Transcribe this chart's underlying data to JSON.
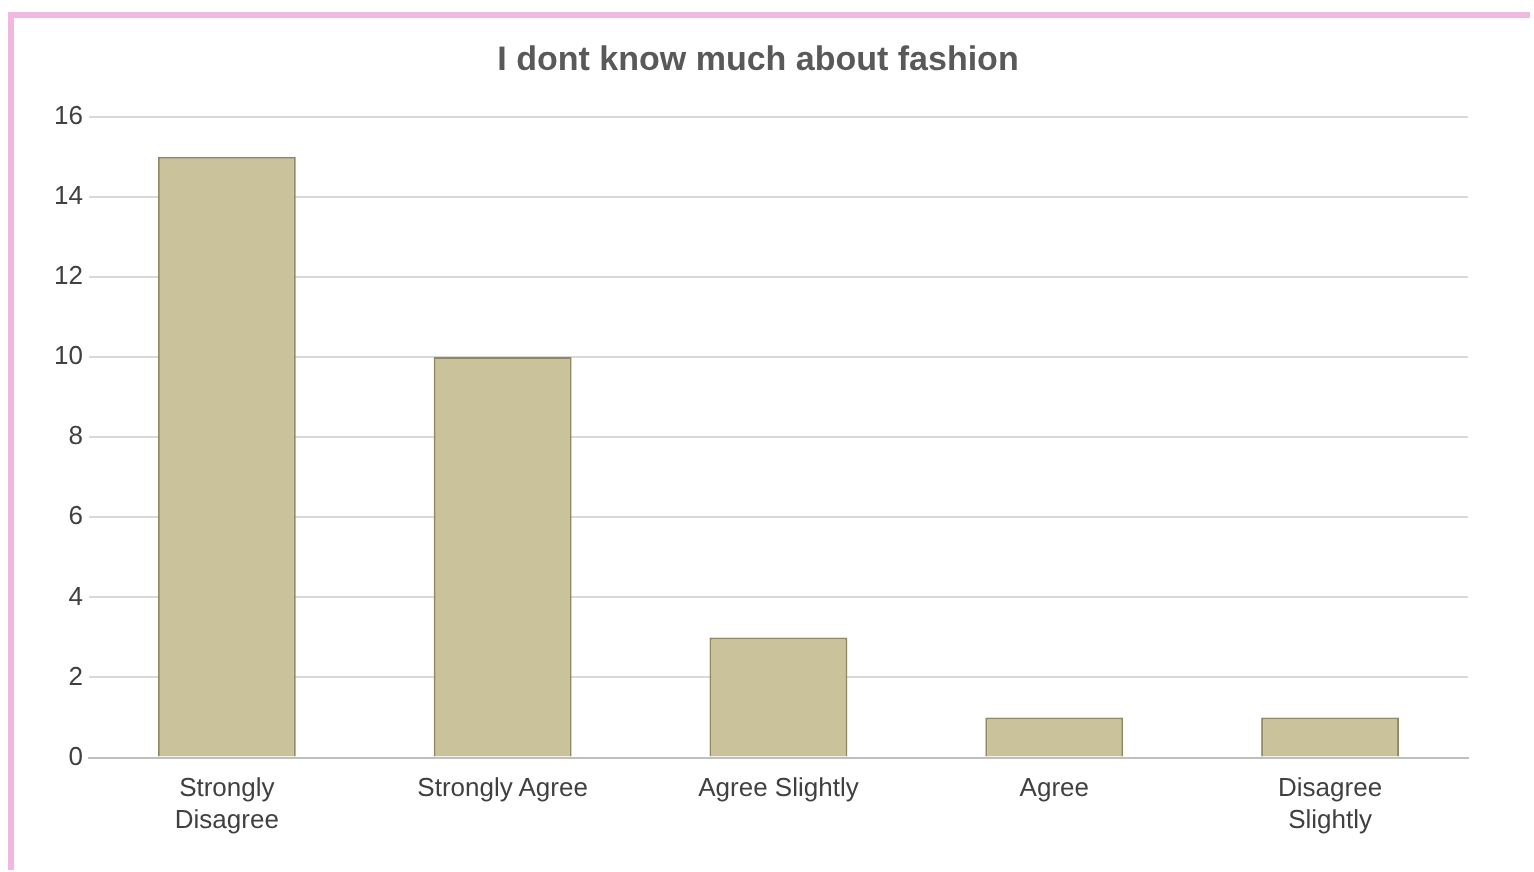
{
  "chart_data": {
    "type": "bar",
    "title": "I dont know much about fashion",
    "categories": [
      "Strongly Disagree",
      "Strongly Agree",
      "Agree Slightly",
      "Agree",
      "Disagree Slightly"
    ],
    "values": [
      15,
      10,
      3,
      1,
      1
    ],
    "color": "#c9c29a",
    "ylim": [
      0,
      16
    ],
    "yticks": [
      0,
      2,
      4,
      6,
      8,
      10,
      12,
      14,
      16
    ],
    "grid": "y",
    "legend": false
  }
}
